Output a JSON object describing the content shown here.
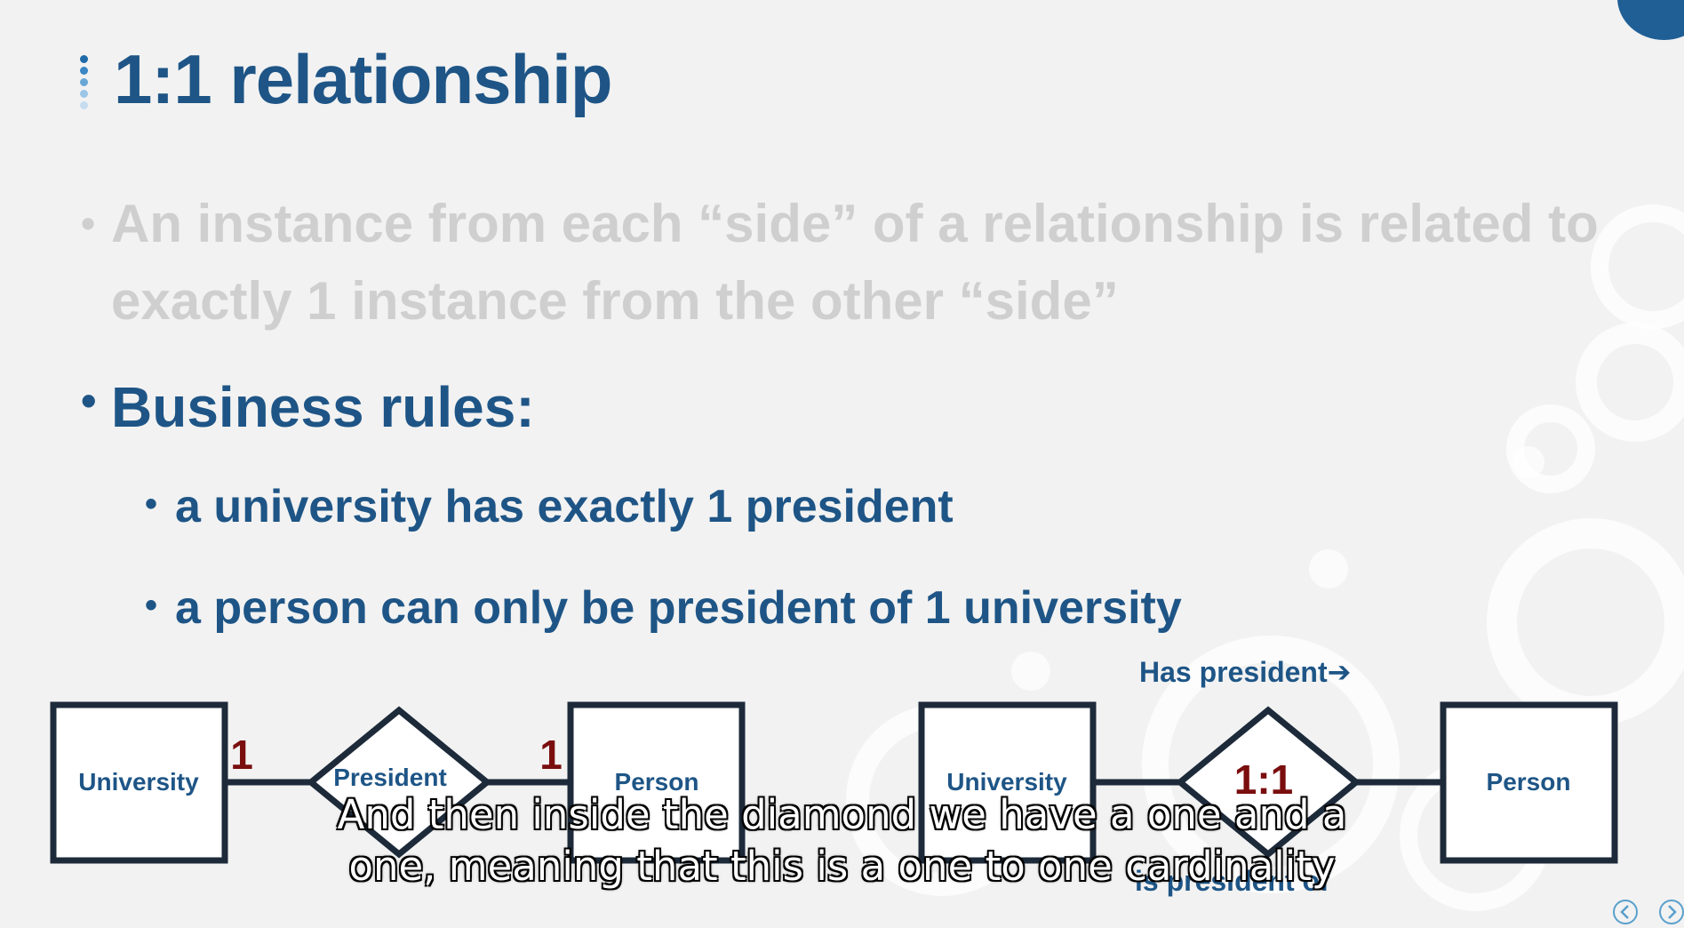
{
  "slide": {
    "title": "1:1 relationship",
    "bullets": [
      {
        "text": "An instance from each “side” of a relationship is related to exactly 1 instance from the other “side”"
      },
      {
        "text": "Business rules:"
      }
    ],
    "sub_bullets": [
      {
        "text": "a university has exactly 1 president"
      },
      {
        "text": "a person can only be president of 1 university"
      }
    ]
  },
  "diagram_left": {
    "entity_a": "University",
    "relationship": "President",
    "entity_b": "Person",
    "cardinality_a": "1",
    "cardinality_b": "1"
  },
  "diagram_right": {
    "entity_a": "University",
    "relationship": "1:1",
    "entity_b": "Person",
    "forward_label": "Has president➔",
    "backward_label": "is president of"
  },
  "subtitle": {
    "line1": "And then inside the diamond we have a one and a",
    "line2": "one, meaning that this is a one to one cardinality"
  },
  "colors": {
    "title": "#1e5586",
    "faded_text": "#cfcfcf",
    "cardinality": "#7a0e0e",
    "outline": "#1d2a3a"
  }
}
